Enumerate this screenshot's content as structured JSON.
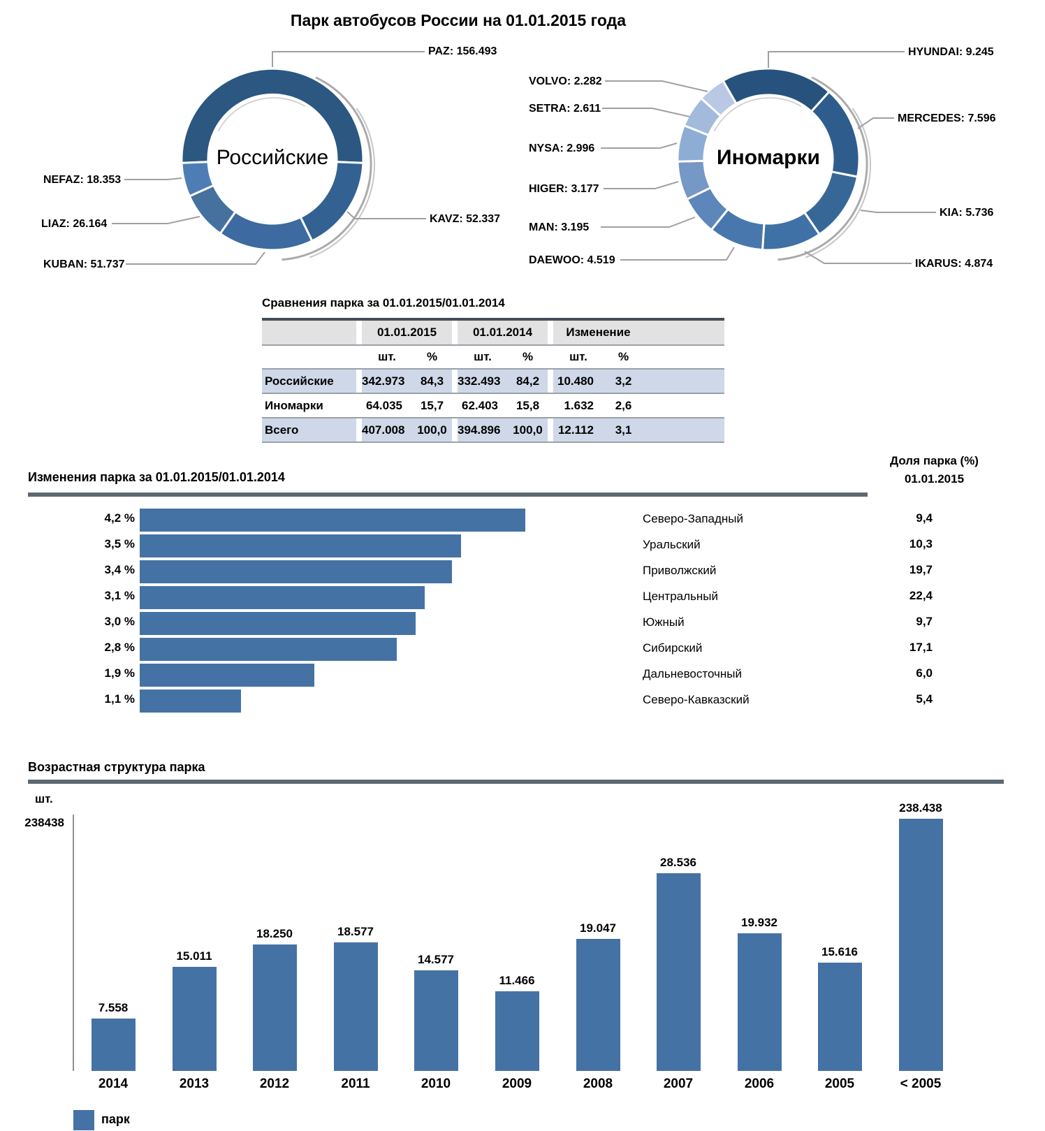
{
  "page_title": "Парк автобусов России на 01.01.2015 года",
  "colors": {
    "bar": "#4572a4",
    "table_highlight": "#cfd8e8",
    "table_header_gray": "#e2e2e2",
    "section_rule": "#5d6872",
    "leader_line": "#a0a0a0"
  },
  "comparison_table": {
    "title": "Сравнения парка за 01.01.2015/01.01.2014",
    "col_groups": [
      "01.01.2015",
      "01.01.2014",
      "Изменение"
    ],
    "sub_headers": [
      "шт.",
      "%"
    ],
    "rows": [
      {
        "label": "Российские",
        "cells": [
          "342.973",
          "84,3",
          "332.493",
          "84,2",
          "10.480",
          "3,2"
        ],
        "highlight": true
      },
      {
        "label": "Иномарки",
        "cells": [
          "64.035",
          "15,7",
          "62.403",
          "15,8",
          "1.632",
          "2,6"
        ],
        "highlight": false
      },
      {
        "label": "Всего",
        "cells": [
          "407.008",
          "100,0",
          "394.896",
          "100,0",
          "12.112",
          "3,1"
        ],
        "highlight": true
      }
    ]
  },
  "chart_data": [
    {
      "type": "pie",
      "variant": "donut",
      "title": "Российские",
      "items": [
        {
          "label": "PAZ",
          "value": 156493,
          "display": "156.493",
          "color": "#2b5781"
        },
        {
          "label": "KAVZ",
          "value": 52337,
          "display": "52.337",
          "color": "#336192"
        },
        {
          "label": "KUBAN",
          "value": 51737,
          "display": "51.737",
          "color": "#3d6aa0"
        },
        {
          "label": "LIAZ",
          "value": 26164,
          "display": "26.164",
          "color": "#45719e"
        },
        {
          "label": "NEFAZ",
          "value": 18353,
          "display": "18.353",
          "color": "#4e7db6"
        }
      ]
    },
    {
      "type": "pie",
      "variant": "donut",
      "title": "Иномарки",
      "items": [
        {
          "label": "HYUNDAI",
          "value": 9245,
          "display": "9.245",
          "color": "#27527d"
        },
        {
          "label": "MERCEDES",
          "value": 7596,
          "display": "7.596",
          "color": "#2e5d8d"
        },
        {
          "label": "KIA",
          "value": 5736,
          "display": "5.736",
          "color": "#376797"
        },
        {
          "label": "IKARUS",
          "value": 4874,
          "display": "4.874",
          "color": "#3f70a6"
        },
        {
          "label": "DAEWOO",
          "value": 4519,
          "display": "4.519",
          "color": "#4877ad"
        },
        {
          "label": "MAN",
          "value": 3195,
          "display": "3.195",
          "color": "#5d86ba"
        },
        {
          "label": "HIGER",
          "value": 3177,
          "display": "3.177",
          "color": "#7598c6"
        },
        {
          "label": "NYSA",
          "value": 2996,
          "display": "2.996",
          "color": "#8dadd4"
        },
        {
          "label": "SETRA",
          "value": 2611,
          "display": "2.611",
          "color": "#a3badd"
        },
        {
          "label": "VOLVO",
          "value": 2282,
          "display": "2.282",
          "color": "#b9c8e5"
        }
      ]
    },
    {
      "type": "bar",
      "orientation": "horizontal",
      "title": "Изменения парка за 01.01.2015/01.01.2014",
      "share_header_line1": "Доля парка (%)",
      "share_header_line2": "01.01.2015",
      "rows": [
        {
          "pct_label": "4,2 %",
          "pct": 4.2,
          "region": "Северо-Западный",
          "share": "9,4"
        },
        {
          "pct_label": "3,5 %",
          "pct": 3.5,
          "region": "Уральский",
          "share": "10,3"
        },
        {
          "pct_label": "3,4 %",
          "pct": 3.4,
          "region": "Приволжский",
          "share": "19,7"
        },
        {
          "pct_label": "3,1 %",
          "pct": 3.1,
          "region": "Центральный",
          "share": "22,4"
        },
        {
          "pct_label": "3,0 %",
          "pct": 3.0,
          "region": "Южный",
          "share": "9,7"
        },
        {
          "pct_label": "2,8 %",
          "pct": 2.8,
          "region": "Сибирский",
          "share": "17,1"
        },
        {
          "pct_label": "1,9 %",
          "pct": 1.9,
          "region": "Дальневосточный",
          "share": "6,0"
        },
        {
          "pct_label": "1,1 %",
          "pct": 1.1,
          "region": "Северо-Кавказский",
          "share": "5,4"
        }
      ]
    },
    {
      "type": "bar",
      "title": "Возрастная структура парка",
      "ylabel": "шт.",
      "ymax_label": "238438",
      "legend": "парк",
      "categories": [
        "2014",
        "2013",
        "2012",
        "2011",
        "2010",
        "2009",
        "2008",
        "2007",
        "2006",
        "2005",
        "< 2005"
      ],
      "values": [
        7558,
        15011,
        18250,
        18577,
        14577,
        11466,
        19047,
        28536,
        19932,
        15616,
        238438
      ],
      "value_labels": [
        "7.558",
        "15.011",
        "18.250",
        "18.577",
        "14.577",
        "11.466",
        "19.047",
        "28.536",
        "19.932",
        "15.616",
        "238.438"
      ]
    }
  ]
}
